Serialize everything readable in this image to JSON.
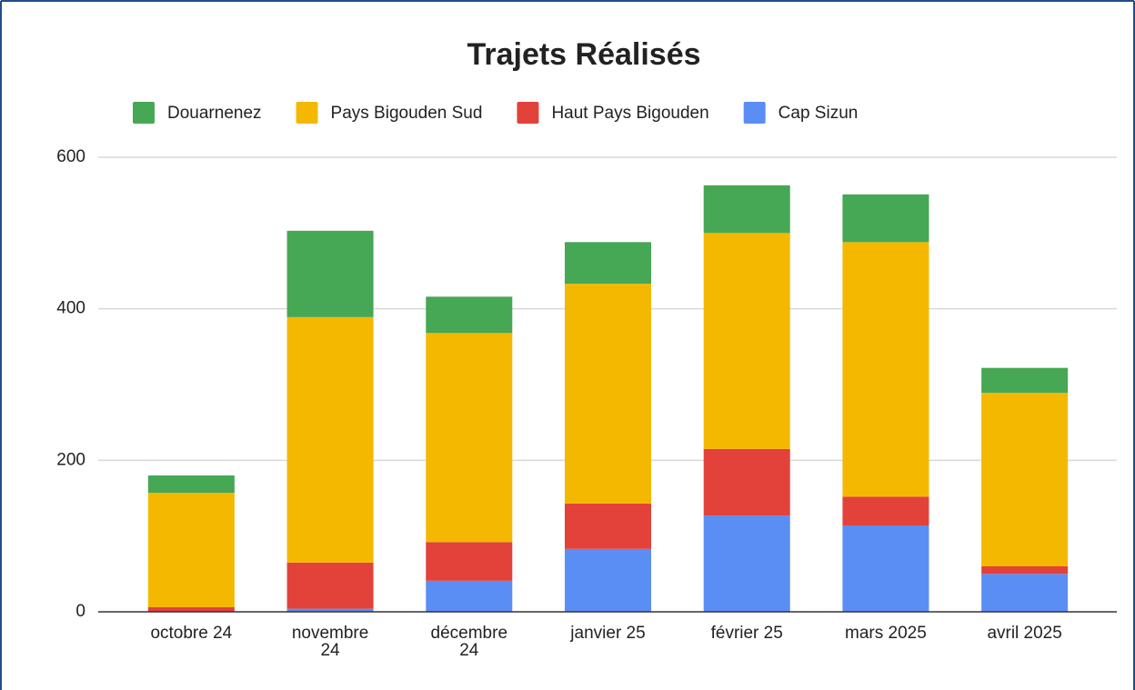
{
  "chart_data": {
    "type": "bar",
    "stacked": true,
    "title": "Trajets Réalisés",
    "categories": [
      "octobre 24",
      "novembre 24",
      "décembre 24",
      "janvier 25",
      "février 25",
      "mars 2025",
      "avril 2025"
    ],
    "series": [
      {
        "name": "Cap Sizun",
        "color": "#5b8ef4",
        "values": [
          0,
          4,
          41,
          83,
          127,
          114,
          50
        ]
      },
      {
        "name": "Haut Pays Bigouden",
        "color": "#e2423a",
        "values": [
          6,
          61,
          51,
          60,
          88,
          38,
          10
        ]
      },
      {
        "name": "Pays Bigouden Sud",
        "color": "#f4b800",
        "values": [
          151,
          324,
          276,
          290,
          285,
          336,
          229
        ]
      },
      {
        "name": "Douarnenez",
        "color": "#46a755",
        "values": [
          23,
          114,
          48,
          55,
          63,
          63,
          33
        ]
      }
    ],
    "legend_order": [
      "Douarnenez",
      "Pays Bigouden Sud",
      "Haut Pays Bigouden",
      "Cap Sizun"
    ],
    "ylim": [
      0,
      600
    ],
    "yticks": [
      0,
      200,
      400,
      600
    ],
    "grid": true
  }
}
